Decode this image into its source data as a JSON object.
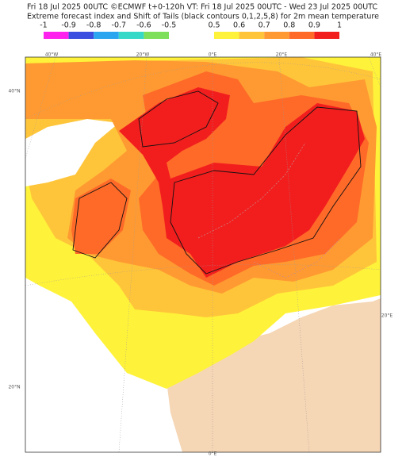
{
  "header": {
    "line1": "Fri 18 Jul 2025 00UTC ©ECMWF t+0-120h  VT: Fri 18 Jul 2025 00UTC - Wed 23 Jul 2025 00UTC",
    "line2": "Extreme forecast index and Shift of Tails (black contours 0,1,2,5,8) for 2m mean temperature"
  },
  "colorbar": {
    "negative": {
      "ticks": [
        -1,
        -0.9,
        -0.8,
        -0.7,
        -0.6,
        -0.5
      ],
      "colors": [
        "#ff22ee",
        "#3a4fe0",
        "#2aa6f0",
        "#36d8c8",
        "#7ee05a"
      ]
    },
    "positive": {
      "ticks": [
        0.5,
        0.6,
        0.7,
        0.8,
        0.9,
        1
      ],
      "colors": [
        "#fff23a",
        "#ffc53a",
        "#ff9a32",
        "#ff6a28",
        "#f21e1e"
      ]
    }
  },
  "map_labels": [
    "40°W",
    "20°W",
    "0°E",
    "20°E",
    "40°E",
    "40°N",
    "20°N",
    "20°E",
    "0°E"
  ]
}
